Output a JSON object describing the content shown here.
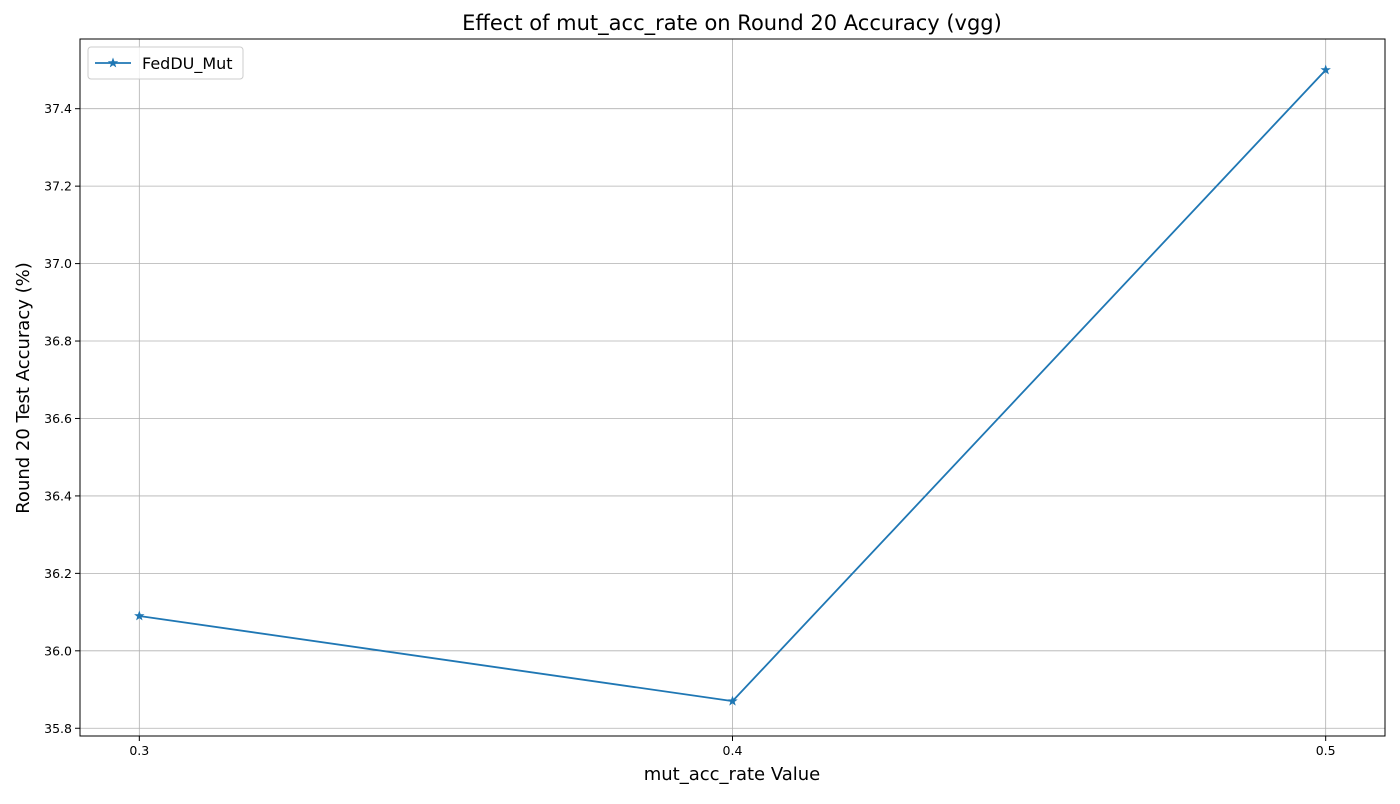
{
  "chart_data": {
    "type": "line",
    "title": "Effect of mut_acc_rate on Round 20 Accuracy (vgg)",
    "xlabel": "mut_acc_rate Value",
    "ylabel": "Round 20 Test Accuracy (%)",
    "x": [
      0.3,
      0.4,
      0.5
    ],
    "x_tick_labels": [
      "0.3",
      "0.4",
      "0.5"
    ],
    "xlim": [
      0.29,
      0.51
    ],
    "ylim": [
      35.78,
      37.58
    ],
    "y_ticks": [
      35.8,
      36.0,
      36.2,
      36.4,
      36.6,
      36.8,
      37.0,
      37.2,
      37.4
    ],
    "y_tick_labels": [
      "35.8",
      "36.0",
      "36.2",
      "36.4",
      "36.6",
      "36.8",
      "37.0",
      "37.2",
      "37.4"
    ],
    "grid": true,
    "legend_position": "top-left",
    "series": [
      {
        "name": "FedDU_Mut",
        "values": [
          36.09,
          35.87,
          37.5
        ],
        "color": "#1f77b4",
        "marker": "star"
      }
    ]
  }
}
